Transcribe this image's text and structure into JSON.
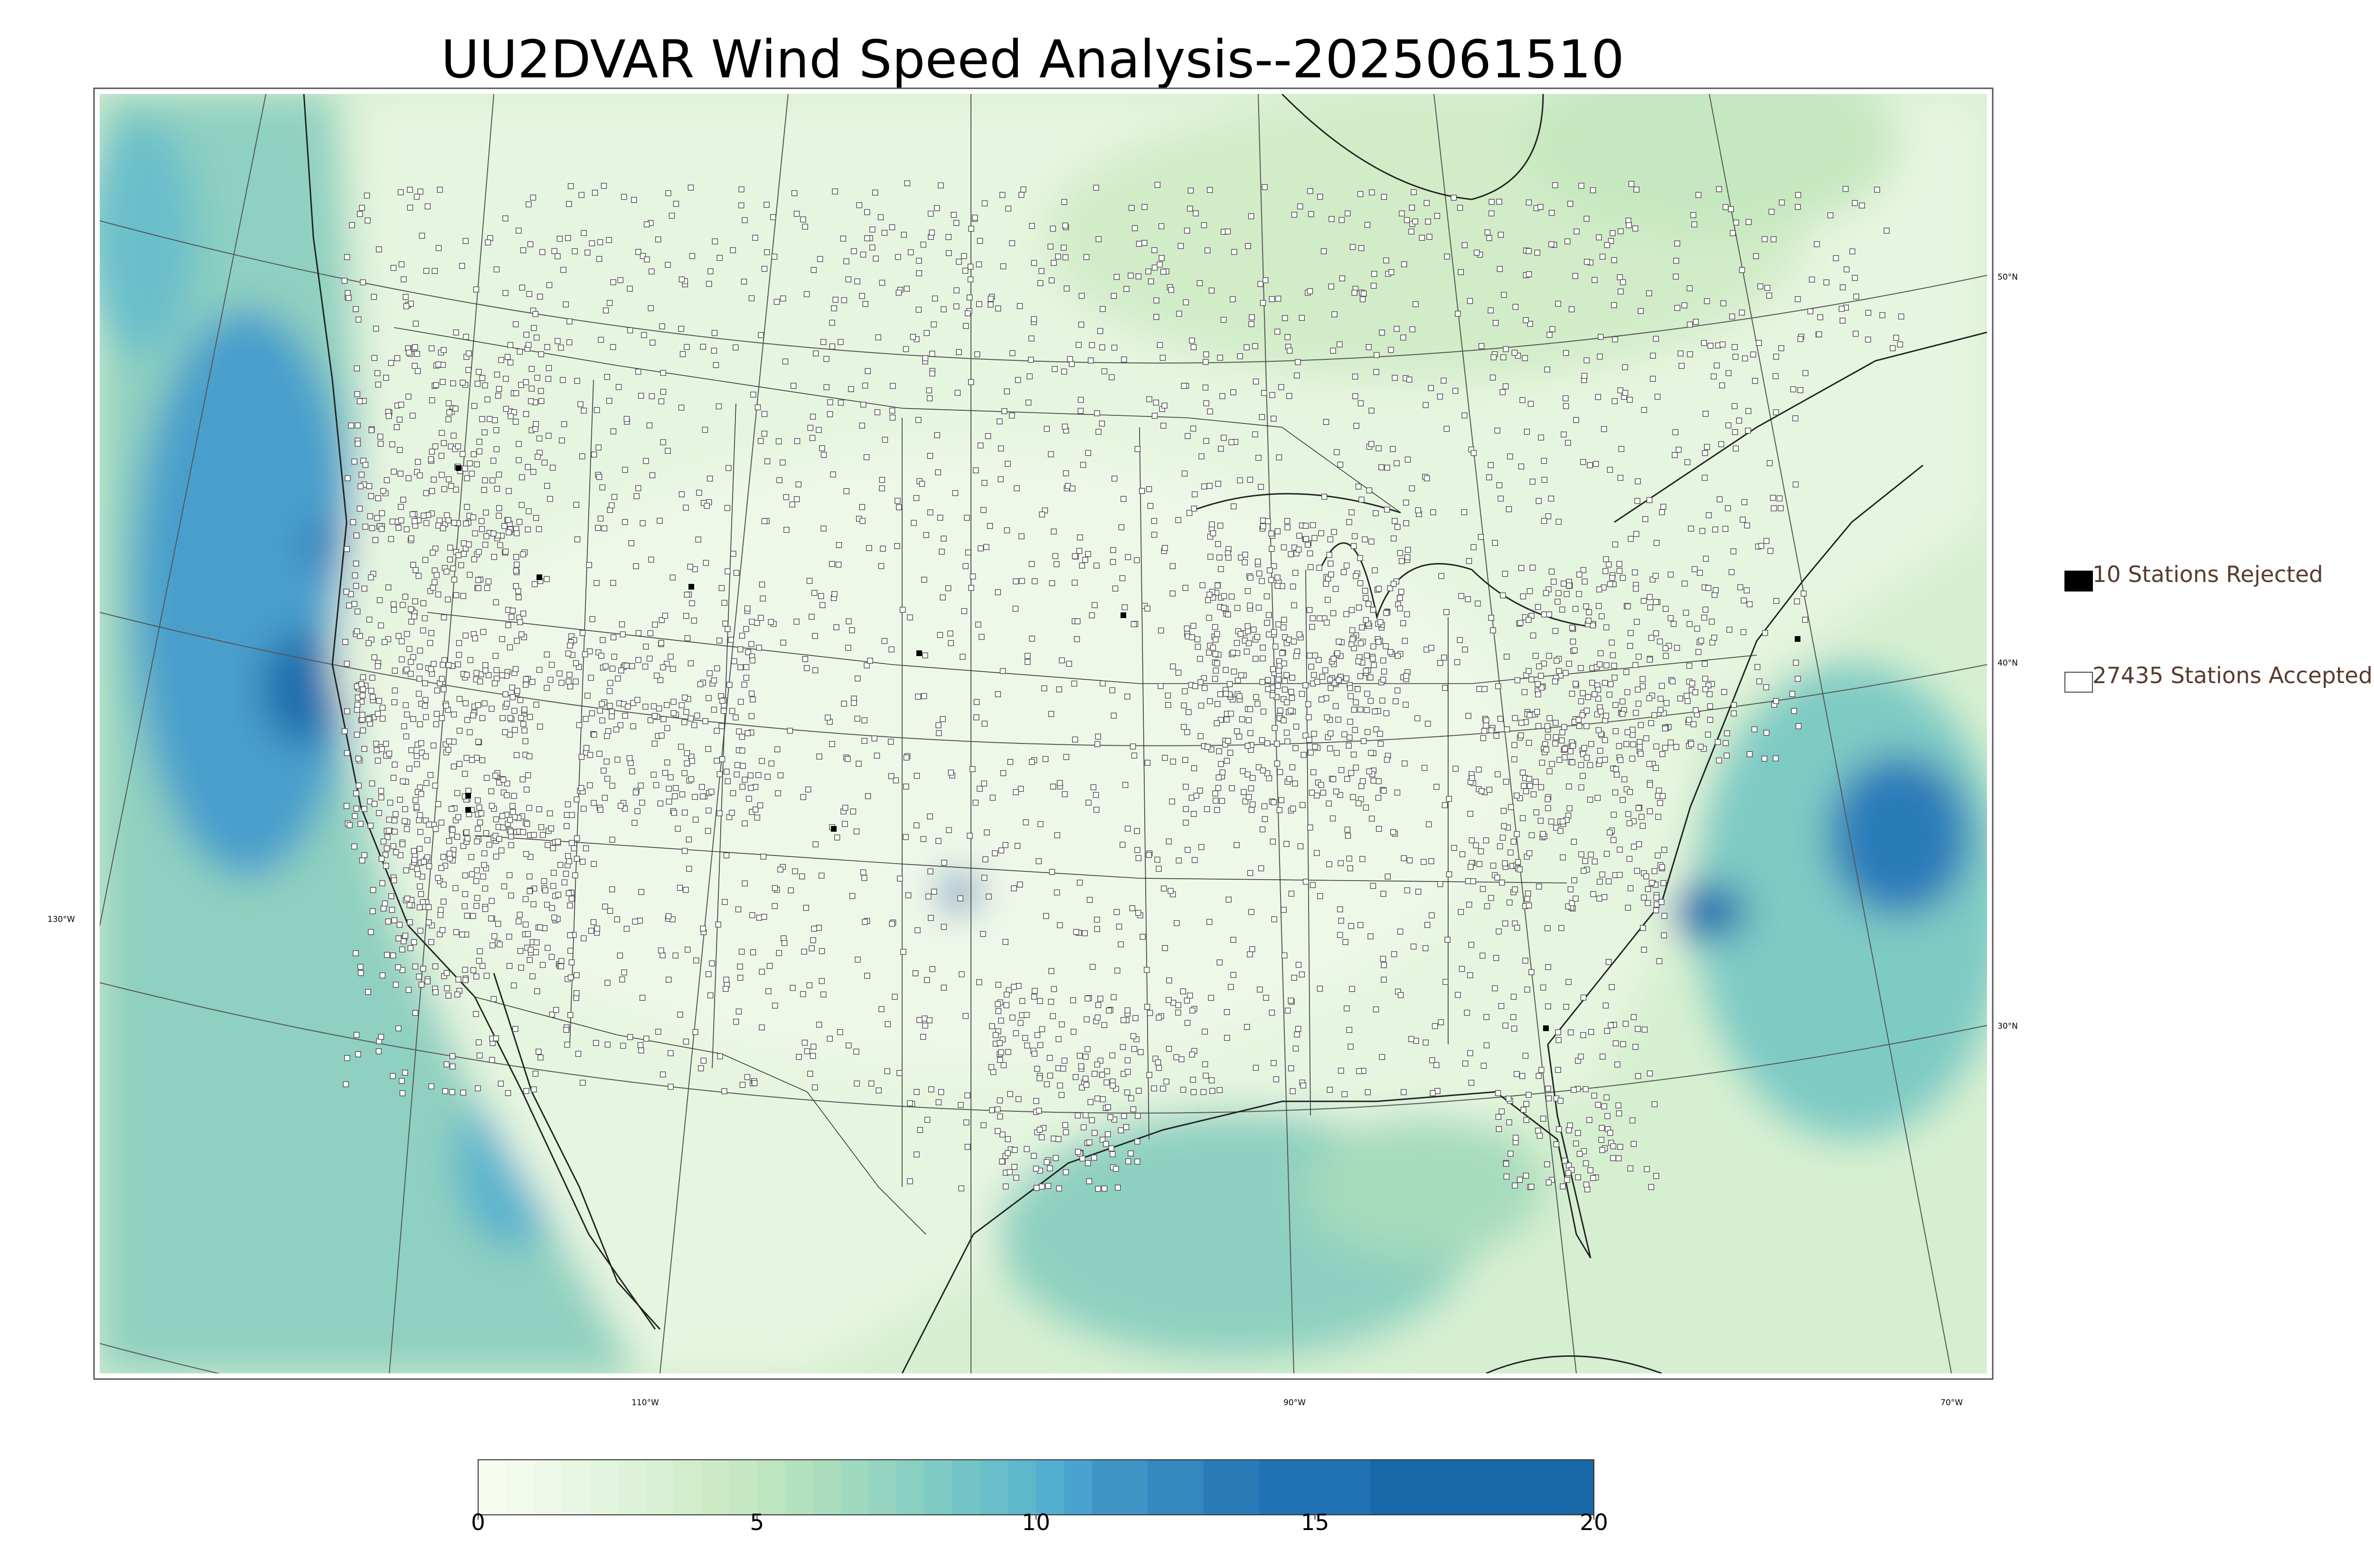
{
  "title": "UU2DVAR Wind Speed Analysis--2025061510",
  "legend": {
    "rejected_label": "10 Stations Rejected",
    "accepted_label": "27435 Stations Accepted",
    "rejected_color": "#000000",
    "accepted_color": "#ffffff"
  },
  "longitude_labels": [
    "130°W",
    "110°W",
    "90°W",
    "70°W"
  ],
  "latitude_labels": [
    "50°N",
    "40°N",
    "30°N"
  ],
  "colorbar": {
    "min": 0,
    "max": 20,
    "ticks": [
      "0",
      "5",
      "10",
      "15",
      "20"
    ],
    "levels": [
      0,
      0.5,
      1,
      1.5,
      2,
      2.5,
      3,
      3.5,
      4,
      4.5,
      5,
      5.5,
      6,
      6.5,
      7,
      7.5,
      8,
      8.5,
      9,
      9.5,
      10,
      10.5,
      11,
      12,
      13,
      14,
      16,
      20
    ],
    "colors": [
      "#f7fcf0",
      "#f2faec",
      "#edf8e8",
      "#e8f6e3",
      "#e3f4df",
      "#def2d9",
      "#d8f0d3",
      "#d2edcc",
      "#cceac5",
      "#c5e8c2",
      "#bde5be",
      "#b4e1bd",
      "#aaddbe",
      "#9fd9bf",
      "#94d4c0",
      "#89cfc2",
      "#7ecac4",
      "#72c4c6",
      "#68bec9",
      "#5eb8cc",
      "#54aed0",
      "#4aa2ce",
      "#3f94c6",
      "#3487bf",
      "#2b7bb9",
      "#2171b5",
      "#1867a6"
    ],
    "station_count_accepted": 27435,
    "station_count_rejected": 10
  }
}
